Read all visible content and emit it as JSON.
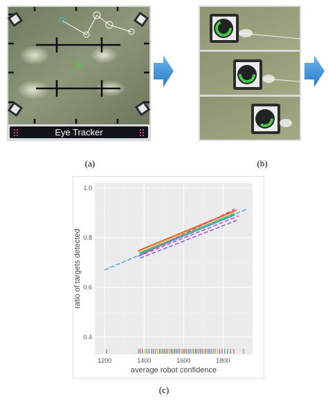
{
  "panel_a": {
    "label": "Eye Tracker",
    "caption": "(a)"
  },
  "panel_b": {
    "caption": "(b)"
  },
  "panel_c": {
    "caption": "(c)"
  },
  "colors": {
    "arrow": "#3b8fd8",
    "floor": "#7f8a6a",
    "bar": "#101418",
    "bar_dots": "#e0408a",
    "chart_bg": "#ebebeb",
    "grid": "#ffffff"
  },
  "chart_data": {
    "type": "line",
    "xlabel": "average robot confidence",
    "ylabel": "ratio of targets detected",
    "xlim": [
      1150,
      1950
    ],
    "ylim": [
      0.33,
      1.02
    ],
    "xticks": [
      1200,
      1400,
      1600,
      1800
    ],
    "yticks": [
      0.4,
      0.6,
      0.8,
      1.0
    ],
    "xtick_labels": [
      "1200",
      "1400",
      "1600",
      "1800"
    ],
    "ytick_labels": [
      "0.4",
      "0.6",
      "0.8",
      "1.0"
    ],
    "grid": true,
    "legend": "none",
    "series": [
      {
        "color": "#4aa3df",
        "dash": true,
        "x": [
          1200,
          1920
        ],
        "y": [
          0.67,
          0.915
        ]
      },
      {
        "color": "#e24a3b",
        "dash": false,
        "x": [
          1370,
          1870
        ],
        "y": [
          0.748,
          0.912
        ]
      },
      {
        "color": "#f0a030",
        "dash": false,
        "x": [
          1370,
          1860
        ],
        "y": [
          0.744,
          0.905
        ]
      },
      {
        "color": "#3fbf4a",
        "dash": false,
        "x": [
          1375,
          1860
        ],
        "y": [
          0.738,
          0.898
        ]
      },
      {
        "color": "#2a9ad0",
        "dash": false,
        "x": [
          1380,
          1860
        ],
        "y": [
          0.735,
          0.892
        ]
      },
      {
        "color": "#c04ad8",
        "dash": true,
        "x": [
          1370,
          1880
        ],
        "y": [
          0.725,
          0.888
        ]
      },
      {
        "color": "#8a5ad8",
        "dash": true,
        "x": [
          1380,
          1880
        ],
        "y": [
          0.718,
          0.873
        ]
      },
      {
        "color": "#d84a8a",
        "dash": true,
        "x": [
          1390,
          1860
        ],
        "y": [
          0.733,
          0.915
        ]
      }
    ],
    "rug": {
      "y_position": 0.34,
      "ticks": [
        {
          "x": 1210,
          "c": "#4aa3df"
        },
        {
          "x": 1372,
          "c": "#3fbf4a"
        },
        {
          "x": 1380,
          "c": "#e24a3b"
        },
        {
          "x": 1392,
          "c": "#c04ad8"
        },
        {
          "x": 1405,
          "c": "#f0a030"
        },
        {
          "x": 1414,
          "c": "#3fbf4a"
        },
        {
          "x": 1425,
          "c": "#2a9ad0"
        },
        {
          "x": 1438,
          "c": "#e24a3b"
        },
        {
          "x": 1448,
          "c": "#8a5ad8"
        },
        {
          "x": 1458,
          "c": "#3fbf4a"
        },
        {
          "x": 1468,
          "c": "#f0a030"
        },
        {
          "x": 1478,
          "c": "#d84a8a"
        },
        {
          "x": 1486,
          "c": "#3fbf4a"
        },
        {
          "x": 1495,
          "c": "#2a9ad0"
        },
        {
          "x": 1503,
          "c": "#e24a3b"
        },
        {
          "x": 1512,
          "c": "#c04ad8"
        },
        {
          "x": 1520,
          "c": "#3fbf4a"
        },
        {
          "x": 1530,
          "c": "#f0a030"
        },
        {
          "x": 1538,
          "c": "#8a5ad8"
        },
        {
          "x": 1546,
          "c": "#3fbf4a"
        },
        {
          "x": 1555,
          "c": "#e24a3b"
        },
        {
          "x": 1563,
          "c": "#2a9ad0"
        },
        {
          "x": 1572,
          "c": "#d84a8a"
        },
        {
          "x": 1580,
          "c": "#3fbf4a"
        },
        {
          "x": 1590,
          "c": "#f0a030"
        },
        {
          "x": 1598,
          "c": "#c04ad8"
        },
        {
          "x": 1606,
          "c": "#e24a3b"
        },
        {
          "x": 1615,
          "c": "#3fbf4a"
        },
        {
          "x": 1624,
          "c": "#2a9ad0"
        },
        {
          "x": 1633,
          "c": "#8a5ad8"
        },
        {
          "x": 1642,
          "c": "#f0a030"
        },
        {
          "x": 1650,
          "c": "#3fbf4a"
        },
        {
          "x": 1660,
          "c": "#e24a3b"
        },
        {
          "x": 1668,
          "c": "#d84a8a"
        },
        {
          "x": 1678,
          "c": "#3fbf4a"
        },
        {
          "x": 1686,
          "c": "#2a9ad0"
        },
        {
          "x": 1695,
          "c": "#c04ad8"
        },
        {
          "x": 1704,
          "c": "#f0a030"
        },
        {
          "x": 1712,
          "c": "#e24a3b"
        },
        {
          "x": 1722,
          "c": "#3fbf4a"
        },
        {
          "x": 1730,
          "c": "#8a5ad8"
        },
        {
          "x": 1740,
          "c": "#2a9ad0"
        },
        {
          "x": 1750,
          "c": "#d84a8a"
        },
        {
          "x": 1760,
          "c": "#3fbf4a"
        },
        {
          "x": 1772,
          "c": "#f0a030"
        },
        {
          "x": 1784,
          "c": "#e24a3b"
        },
        {
          "x": 1796,
          "c": "#c04ad8"
        },
        {
          "x": 1808,
          "c": "#3fbf4a"
        },
        {
          "x": 1822,
          "c": "#2a9ad0"
        },
        {
          "x": 1838,
          "c": "#8a5ad8"
        },
        {
          "x": 1855,
          "c": "#e24a3b"
        },
        {
          "x": 1905,
          "c": "#4aa3df"
        }
      ]
    }
  }
}
